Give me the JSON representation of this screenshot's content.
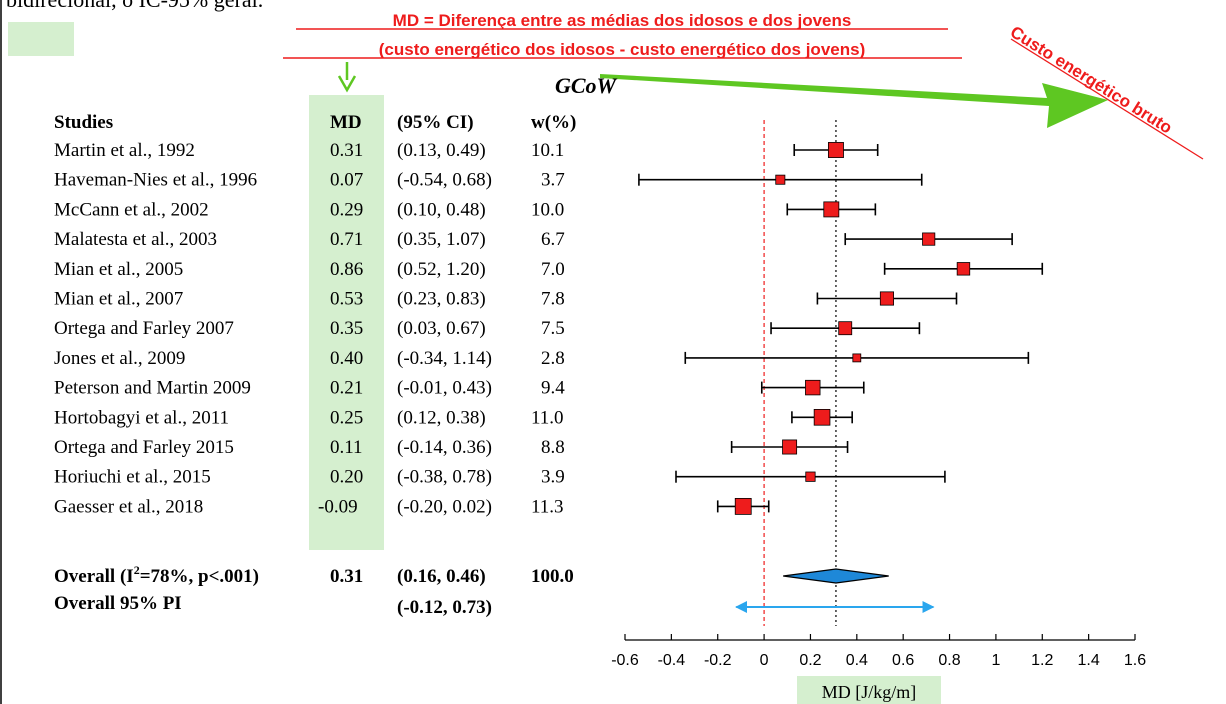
{
  "top_text": "bidirecional, o IC-95% geral.",
  "annotation": {
    "line1": "MD = Diferença entre as médias dos idosos e dos jovens",
    "line2": "(custo energético dos idosos - custo energético dos jovens)"
  },
  "rotated_label": "Custo energético bruto",
  "colors": {
    "marker": "#ee1c1c",
    "diamond": "#1e88d8",
    "pi_arrow": "#2aa6ee",
    "highlight": "#d5efcf",
    "annotation": "#ee1c1c",
    "arrow": "#5ec722"
  },
  "chart_data": {
    "type": "forest",
    "title": "GCoW",
    "headers": {
      "studies": "Studies",
      "md": "MD",
      "ci": "(95% CI)",
      "weight": "w(%)"
    },
    "xlabel": "MD [J/kg/m]",
    "xlim": [
      -0.6,
      1.6
    ],
    "xticks": [
      "-0.6",
      "-0.4",
      "-0.2",
      "0",
      "0.2",
      "0.4",
      "0.6",
      "0.8",
      "1",
      "1.2",
      "1.4",
      "1.6"
    ],
    "reference_lines": [
      {
        "value": 0,
        "style": "dashed",
        "color": "#ee1c1c"
      },
      {
        "value": 0.31,
        "style": "dotted",
        "color": "#000000"
      }
    ],
    "studies": [
      {
        "name": "Martin et al., 1992",
        "md": 0.31,
        "lo": 0.13,
        "hi": 0.49,
        "w": 10.1,
        "md_text": "0.31",
        "ci_text": "(0.13,  0.49)",
        "w_text": "10.1"
      },
      {
        "name": "Haveman-Nies et al., 1996",
        "md": 0.07,
        "lo": -0.54,
        "hi": 0.68,
        "w": 3.7,
        "md_text": "0.07",
        "ci_text": "(-0.54,  0.68)",
        "w_text": "3.7"
      },
      {
        "name": "McCann et al., 2002",
        "md": 0.29,
        "lo": 0.1,
        "hi": 0.48,
        "w": 10.0,
        "md_text": "0.29",
        "ci_text": "(0.10,  0.48)",
        "w_text": "10.0"
      },
      {
        "name": "Malatesta et al., 2003",
        "md": 0.71,
        "lo": 0.35,
        "hi": 1.07,
        "w": 6.7,
        "md_text": "0.71",
        "ci_text": "(0.35,  1.07)",
        "w_text": "6.7"
      },
      {
        "name": "Mian et al., 2005",
        "md": 0.86,
        "lo": 0.52,
        "hi": 1.2,
        "w": 7.0,
        "md_text": "0.86",
        "ci_text": "(0.52,  1.20)",
        "w_text": "7.0"
      },
      {
        "name": "Mian et al., 2007",
        "md": 0.53,
        "lo": 0.23,
        "hi": 0.83,
        "w": 7.8,
        "md_text": "0.53",
        "ci_text": "(0.23,  0.83)",
        "w_text": "7.8"
      },
      {
        "name": "Ortega and Farley 2007",
        "md": 0.35,
        "lo": 0.03,
        "hi": 0.67,
        "w": 7.5,
        "md_text": "0.35",
        "ci_text": "(0.03,  0.67)",
        "w_text": "7.5"
      },
      {
        "name": "Jones et al., 2009",
        "md": 0.4,
        "lo": -0.34,
        "hi": 1.14,
        "w": 2.8,
        "md_text": "0.40",
        "ci_text": "(-0.34,  1.14)",
        "w_text": "2.8"
      },
      {
        "name": "Peterson and Martin 2009",
        "md": 0.21,
        "lo": -0.01,
        "hi": 0.43,
        "w": 9.4,
        "md_text": "0.21",
        "ci_text": "(-0.01,  0.43)",
        "w_text": "9.4"
      },
      {
        "name": "Hortobagyi et al., 2011",
        "md": 0.25,
        "lo": 0.12,
        "hi": 0.38,
        "w": 11.0,
        "md_text": "0.25",
        "ci_text": "(0.12,  0.38)",
        "w_text": "11.0"
      },
      {
        "name": "Ortega and Farley 2015",
        "md": 0.11,
        "lo": -0.14,
        "hi": 0.36,
        "w": 8.8,
        "md_text": "0.11",
        "ci_text": "(-0.14,  0.36)",
        "w_text": "8.8"
      },
      {
        "name": "Horiuchi et al., 2015",
        "md": 0.2,
        "lo": -0.38,
        "hi": 0.78,
        "w": 3.9,
        "md_text": "0.20",
        "ci_text": "(-0.38,  0.78)",
        "w_text": "3.9"
      },
      {
        "name": "Gaesser et al., 2018",
        "md": -0.09,
        "lo": -0.2,
        "hi": 0.02,
        "w": 11.3,
        "md_text": "-0.09",
        "ci_text": "(-0.20,  0.02)",
        "w_text": "11.3"
      }
    ],
    "overall": {
      "label_pre": "Overall (I",
      "label_sup": "2",
      "label_post": "=78%, p<.001)",
      "md": 0.31,
      "lo": 0.16,
      "hi": 0.46,
      "md_text": "0.31",
      "ci_text": "(0.16,  0.46)",
      "weight_text": "100.0"
    },
    "overall_pi": {
      "label": "Overall 95% PI",
      "lo": -0.12,
      "hi": 0.73,
      "ci_text": "(-0.12,  0.73)"
    }
  }
}
